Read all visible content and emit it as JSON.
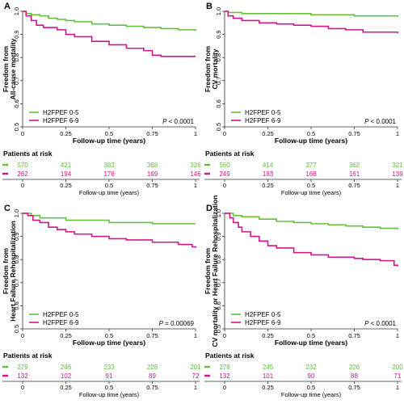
{
  "figure": {
    "x_axis_label": "Follow-up time (years)",
    "risk_table_title": "Patients at risk",
    "colors": {
      "green": "#66c03b",
      "magenta": "#d4158c",
      "axis": "#333333"
    }
  },
  "chart_data": [
    {
      "panel": "A",
      "type": "line",
      "ylabel": [
        "Freedom from",
        "All-cause mortality"
      ],
      "xlabel": "Follow-up time (years)",
      "xlim": [
        0,
        1
      ],
      "ylim": [
        0.5,
        1.0
      ],
      "x_ticks": [
        "0",
        "0.25",
        "0.5",
        "0.75",
        "1"
      ],
      "y_ticks": [
        "0.5",
        "0.6",
        "0.7",
        "0.8",
        "0.9",
        "1.0"
      ],
      "legend": "bottom-left",
      "grid": false,
      "p_value": {
        "prefix": "P",
        "text": " < 0.0001"
      },
      "series": [
        {
          "name": "H2FPEF 0-5",
          "color": "#66c03b",
          "x": [
            0,
            0.02,
            0.05,
            0.1,
            0.15,
            0.2,
            0.25,
            0.3,
            0.4,
            0.5,
            0.6,
            0.7,
            0.8,
            0.9,
            1.0
          ],
          "y": [
            1.0,
            0.99,
            0.985,
            0.98,
            0.97,
            0.965,
            0.96,
            0.955,
            0.945,
            0.94,
            0.935,
            0.93,
            0.925,
            0.92,
            0.915
          ]
        },
        {
          "name": "H2FPEF 6-9",
          "color": "#d4158c",
          "x": [
            0,
            0.02,
            0.05,
            0.08,
            0.12,
            0.2,
            0.25,
            0.3,
            0.4,
            0.5,
            0.6,
            0.7,
            0.75,
            0.8,
            1.0
          ],
          "y": [
            1.0,
            0.98,
            0.96,
            0.94,
            0.93,
            0.92,
            0.9,
            0.89,
            0.87,
            0.855,
            0.84,
            0.83,
            0.81,
            0.805,
            0.805
          ]
        }
      ],
      "at_risk": {
        "columns": [
          "0",
          "0.25",
          "0.5",
          "0.75",
          "1"
        ],
        "rows": [
          {
            "color": "#66c03b",
            "values": [
              "570",
              "421",
              "383",
              "368",
              "326"
            ]
          },
          {
            "color": "#d4158c",
            "values": [
              "262",
              "194",
              "176",
              "169",
              "146"
            ]
          }
        ]
      }
    },
    {
      "panel": "B",
      "type": "line",
      "ylabel": [
        "Freedom from",
        "CV mortality"
      ],
      "xlabel": "Follow-up time (years)",
      "xlim": [
        0,
        1
      ],
      "ylim": [
        0.5,
        1.0
      ],
      "x_ticks": [
        "0",
        "0.25",
        "0.5",
        "0.75",
        "1"
      ],
      "y_ticks": [
        "0.5",
        "0.6",
        "0.7",
        "0.8",
        "0.9",
        "1.0"
      ],
      "legend": "bottom-left",
      "grid": false,
      "p_value": {
        "prefix": "P",
        "text": " < 0.0001"
      },
      "series": [
        {
          "name": "H2FPEF 0-5",
          "color": "#66c03b",
          "x": [
            0,
            0.02,
            0.1,
            0.25,
            0.5,
            0.75,
            1.0
          ],
          "y": [
            1.0,
            0.995,
            0.99,
            0.99,
            0.985,
            0.98,
            0.975
          ]
        },
        {
          "name": "H2FPEF 6-9",
          "color": "#d4158c",
          "x": [
            0,
            0.02,
            0.05,
            0.1,
            0.2,
            0.3,
            0.4,
            0.5,
            0.6,
            0.7,
            0.8,
            1.0
          ],
          "y": [
            1.0,
            0.98,
            0.97,
            0.96,
            0.95,
            0.945,
            0.94,
            0.935,
            0.925,
            0.92,
            0.91,
            0.905
          ]
        }
      ],
      "at_risk": {
        "columns": [
          "0",
          "0.25",
          "0.5",
          "0.75",
          "1"
        ],
        "rows": [
          {
            "color": "#66c03b",
            "values": [
              "560",
              "414",
              "377",
              "362",
              "321"
            ]
          },
          {
            "color": "#d4158c",
            "values": [
              "249",
              "183",
              "168",
              "161",
              "139"
            ]
          }
        ]
      }
    },
    {
      "panel": "C",
      "type": "line",
      "ylabel": [
        "Freedom from",
        "Heart Failure Rehospitalization"
      ],
      "xlabel": "Follow-up time (years)",
      "xlim": [
        0,
        1
      ],
      "ylim": [
        0.5,
        1.0
      ],
      "x_ticks": [
        "0",
        "0.25",
        "0.5",
        "0.75",
        "1"
      ],
      "y_ticks": [
        "0.5",
        "0.6",
        "0.7",
        "0.8",
        "0.9",
        "1.0"
      ],
      "legend": "bottom-left",
      "grid": false,
      "p_value": {
        "prefix": "P",
        "text": " = 0.00069"
      },
      "series": [
        {
          "name": "H2FPEF 0-5",
          "color": "#66c03b",
          "x": [
            0,
            0.05,
            0.1,
            0.25,
            0.5,
            0.75,
            1.0
          ],
          "y": [
            1.0,
            0.99,
            0.98,
            0.97,
            0.96,
            0.955,
            0.955
          ]
        },
        {
          "name": "H2FPEF 6-9",
          "color": "#d4158c",
          "x": [
            0,
            0.03,
            0.06,
            0.1,
            0.15,
            0.2,
            0.25,
            0.3,
            0.4,
            0.5,
            0.6,
            0.75,
            0.9,
            0.98,
            1.0
          ],
          "y": [
            1.0,
            0.99,
            0.97,
            0.96,
            0.94,
            0.93,
            0.92,
            0.91,
            0.9,
            0.89,
            0.885,
            0.875,
            0.865,
            0.855,
            0.85
          ]
        }
      ],
      "at_risk": {
        "columns": [
          "0",
          "0.25",
          "0.5",
          "0.75",
          "1"
        ],
        "rows": [
          {
            "color": "#66c03b",
            "values": [
              "279",
              "246",
              "233",
              "228",
              "201"
            ]
          },
          {
            "color": "#d4158c",
            "values": [
              "132",
              "102",
              "91",
              "89",
              "72"
            ]
          }
        ]
      }
    },
    {
      "panel": "D",
      "type": "line",
      "ylabel": [
        "Freedom from",
        "CV mortality or Heart Failure Rehospitalization"
      ],
      "xlabel": "Follow-up time (years)",
      "xlim": [
        0,
        1
      ],
      "ylim": [
        0.5,
        1.0
      ],
      "x_ticks": [
        "0",
        "0.25",
        "0.5",
        "0.75",
        "1"
      ],
      "y_ticks": [
        "0.5",
        "0.6",
        "0.7",
        "0.8",
        "0.9",
        "1.0"
      ],
      "legend": "bottom-left",
      "grid": false,
      "p_value": {
        "prefix": "P",
        "text": " < 0.0001"
      },
      "series": [
        {
          "name": "H2FPEF 0-5",
          "color": "#66c03b",
          "x": [
            0,
            0.05,
            0.1,
            0.2,
            0.3,
            0.4,
            0.5,
            0.6,
            0.7,
            0.8,
            0.9,
            1.0
          ],
          "y": [
            1.0,
            0.99,
            0.985,
            0.975,
            0.965,
            0.96,
            0.955,
            0.95,
            0.945,
            0.94,
            0.935,
            0.93
          ]
        },
        {
          "name": "H2FPEF 6-9",
          "color": "#d4158c",
          "x": [
            0,
            0.03,
            0.05,
            0.08,
            0.1,
            0.15,
            0.2,
            0.25,
            0.3,
            0.4,
            0.5,
            0.6,
            0.75,
            0.8,
            0.9,
            0.98,
            1.0
          ],
          "y": [
            1.0,
            0.98,
            0.96,
            0.94,
            0.92,
            0.9,
            0.88,
            0.86,
            0.85,
            0.83,
            0.82,
            0.81,
            0.805,
            0.8,
            0.795,
            0.775,
            0.77
          ]
        }
      ],
      "at_risk": {
        "columns": [
          "0",
          "0.25",
          "0.5",
          "0.75",
          "1"
        ],
        "rows": [
          {
            "color": "#66c03b",
            "values": [
              "278",
              "245",
              "232",
              "226",
              "200"
            ]
          },
          {
            "color": "#d4158c",
            "values": [
              "132",
              "101",
              "90",
              "88",
              "71"
            ]
          }
        ]
      }
    }
  ]
}
